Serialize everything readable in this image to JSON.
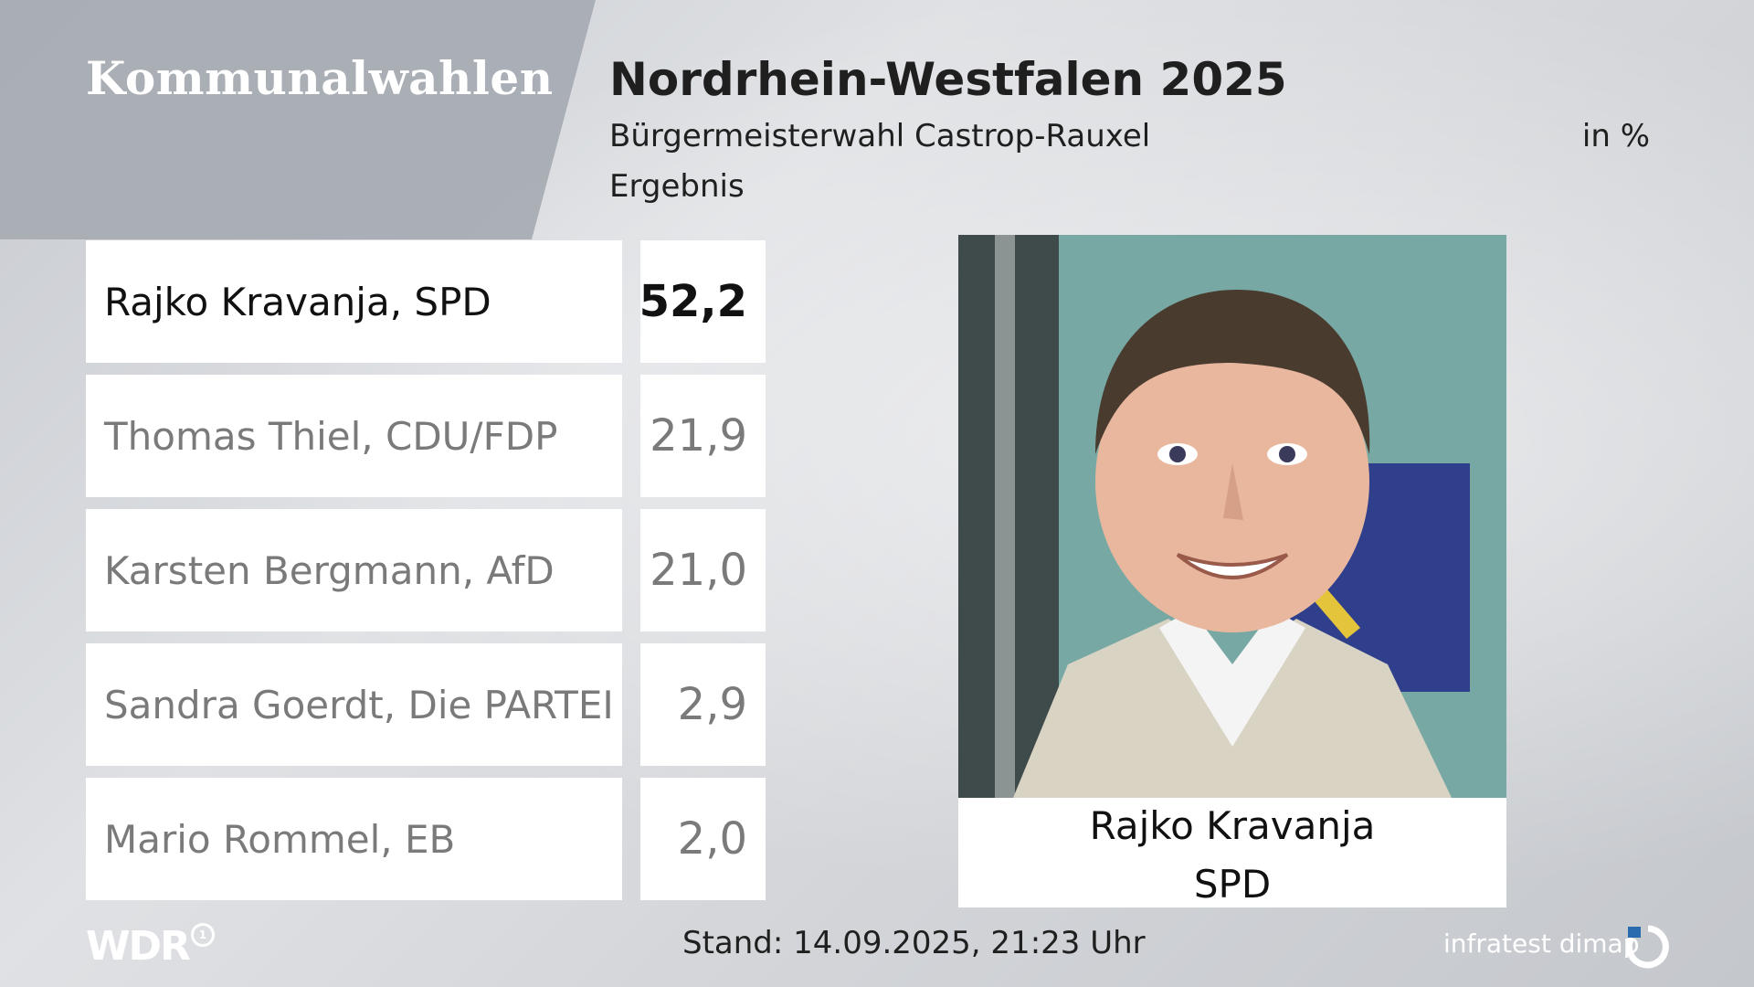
{
  "brand": {
    "title": "Kommunalwahlen",
    "logo": "WDR"
  },
  "colors": {
    "text_dark": "#111111",
    "text_gray": "#7a7a7a",
    "box_bg": "#ffffff",
    "wedge": "#a8acb3"
  },
  "chart_data": {
    "type": "table",
    "title": "Nordrhein-Westfalen 2025",
    "subtitle": "Bürgermeisterwahl Castrop-Rauxel",
    "subtitle2": "Ergebnis",
    "unit": "in %",
    "rows": [
      {
        "label": "Rajko Kravanja, SPD",
        "value": "52,2",
        "winner": true
      },
      {
        "label": "Thomas Thiel, CDU/FDP",
        "value": "21,9",
        "winner": false
      },
      {
        "label": "Karsten Bergmann, AfD",
        "value": "21,0",
        "winner": false
      },
      {
        "label": "Sandra Goerdt, Die PARTEI",
        "value": "2,9",
        "winner": false
      },
      {
        "label": "Mario Rommel, EB",
        "value": "2,0",
        "winner": false
      }
    ]
  },
  "winner_card": {
    "name": "Rajko Kravanja",
    "party": "SPD"
  },
  "footer": {
    "timestamp": "Stand: 14.09.2025, 21:23 Uhr",
    "source": "infratest dimap"
  }
}
